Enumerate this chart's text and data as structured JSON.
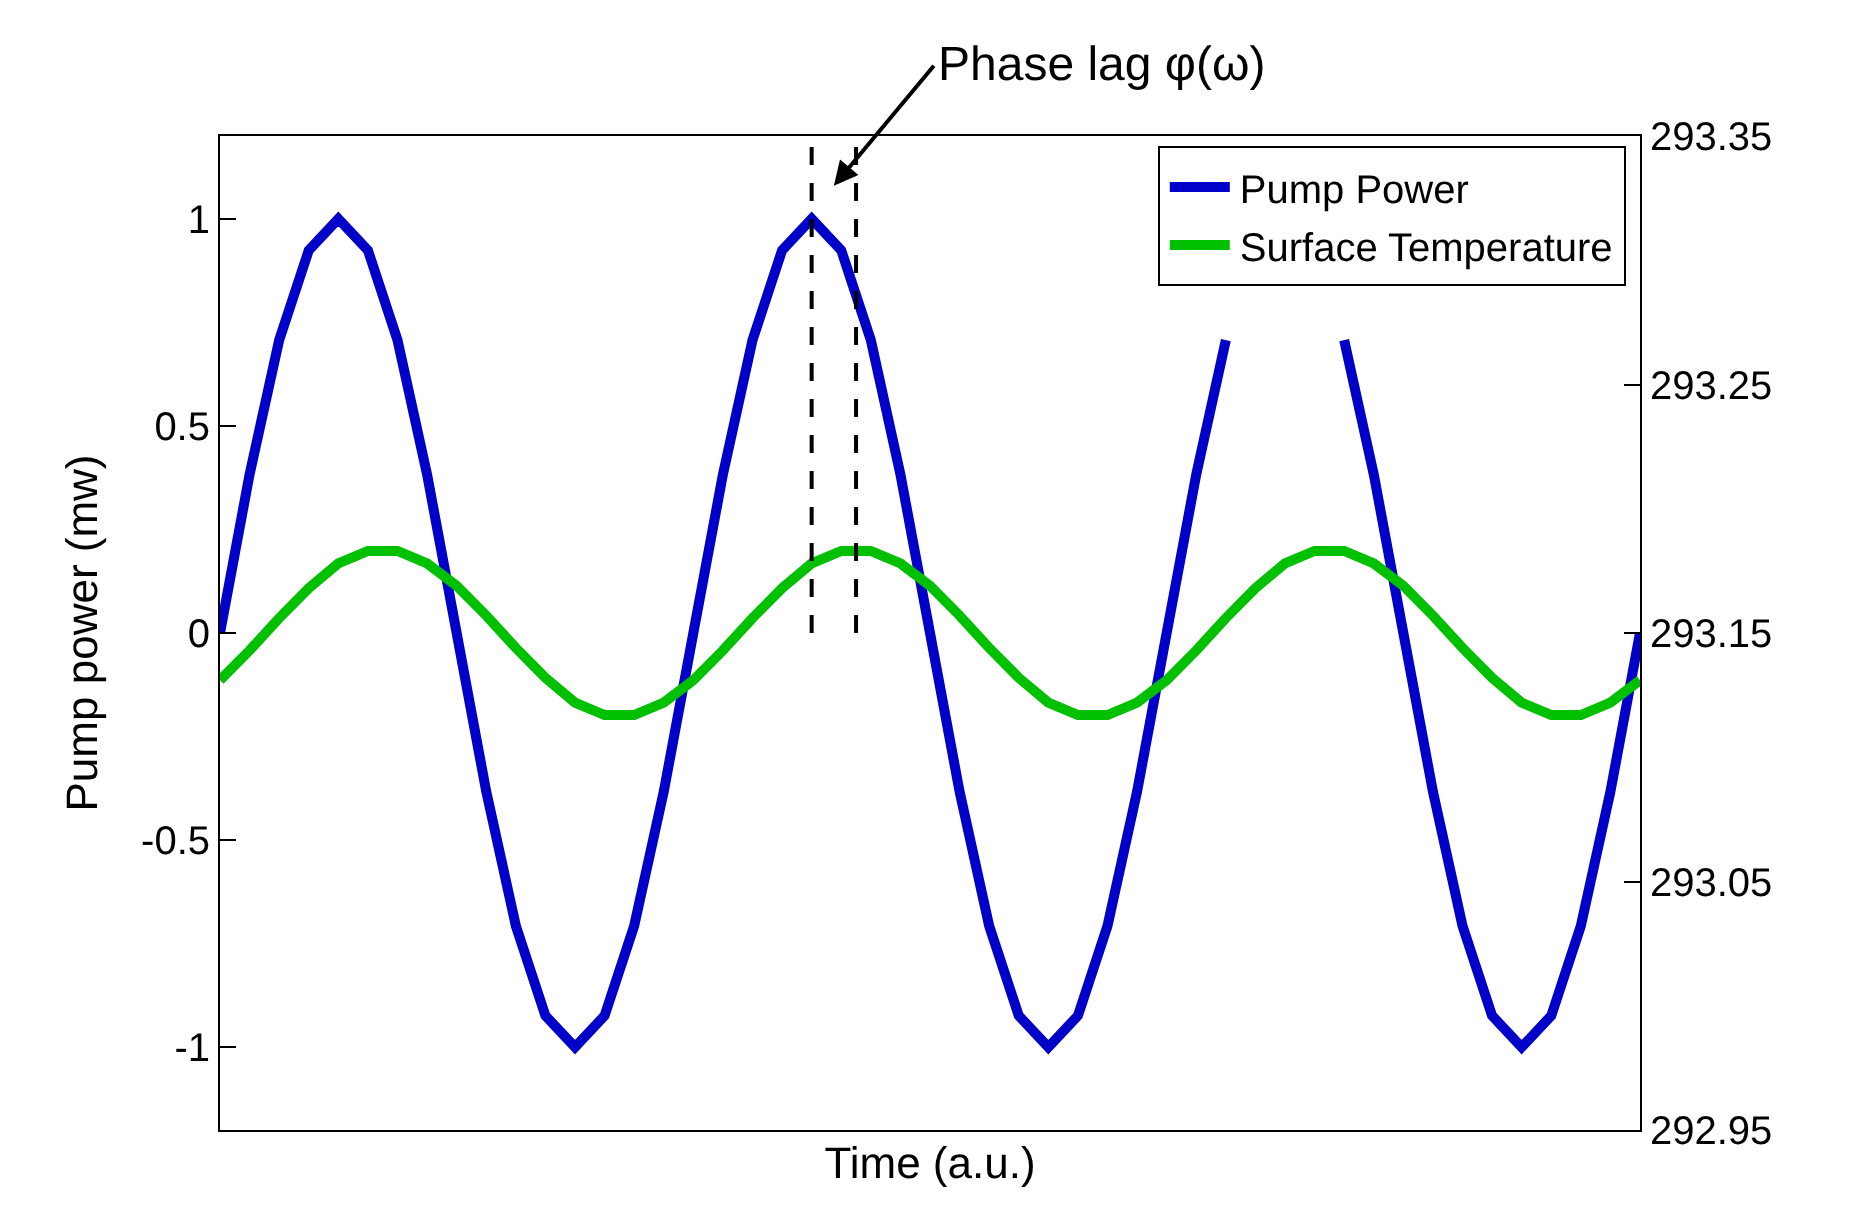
{
  "chart_data": {
    "type": "line",
    "xlabel": "Time (a.u.)",
    "ylabel": "Pump power (mw)",
    "categories": [
      null,
      null,
      null,
      null,
      null,
      null,
      null,
      null,
      null,
      null,
      null,
      null,
      null,
      null,
      null,
      null,
      null,
      null,
      null,
      null,
      null,
      null,
      null,
      null,
      null,
      null,
      null,
      null,
      null,
      null,
      null,
      null,
      null,
      null,
      null,
      null,
      null,
      null,
      null,
      null,
      null,
      null,
      null,
      null,
      null,
      null,
      null,
      null,
      null
    ],
    "series": [
      {
        "name": "Pump Power",
        "color": "#0000c8",
        "values": [
          0,
          0.383,
          0.707,
          0.924,
          1,
          0.924,
          0.707,
          0.383,
          0,
          -0.383,
          -0.707,
          -0.924,
          -1,
          -0.924,
          -0.707,
          -0.383,
          0,
          0.383,
          0.707,
          0.924,
          1,
          0.924,
          0.707,
          0.383,
          0,
          -0.383,
          -0.707,
          -0.924,
          -1,
          -0.924,
          -0.707,
          -0.383,
          0,
          0.383,
          0.707,
          null,
          null,
          null,
          0.707,
          0.383,
          0,
          -0.383,
          -0.707,
          -0.924,
          -1,
          -0.924,
          -0.707,
          -0.383,
          0
        ]
      },
      {
        "name": "Surface Temperature",
        "color": "#00c000",
        "axis": "y2",
        "values": [
          293.131,
          293.143,
          293.156,
          293.168,
          293.178,
          293.183,
          293.183,
          293.178,
          293.169,
          293.157,
          293.144,
          293.132,
          293.122,
          293.117,
          293.117,
          293.122,
          293.131,
          293.143,
          293.156,
          293.168,
          293.178,
          293.183,
          293.183,
          293.178,
          293.169,
          293.157,
          293.144,
          293.132,
          293.122,
          293.117,
          293.117,
          293.122,
          293.131,
          293.143,
          293.156,
          293.168,
          293.178,
          293.183,
          293.183,
          293.178,
          293.169,
          293.157,
          293.144,
          293.132,
          293.122,
          293.117,
          293.117,
          293.122,
          293.131
        ]
      }
    ],
    "ylim": [
      -1.2,
      1.2
    ],
    "yticks": [
      -1,
      -0.5,
      0,
      0.5,
      1
    ],
    "y2lim": [
      292.95,
      293.35
    ],
    "y2ticks": [
      292.95,
      293.05,
      293.15,
      293.25,
      293.35
    ],
    "annotations": [
      "Phase lag φ(ω)"
    ],
    "legend": "top right",
    "line_style": "solid"
  }
}
